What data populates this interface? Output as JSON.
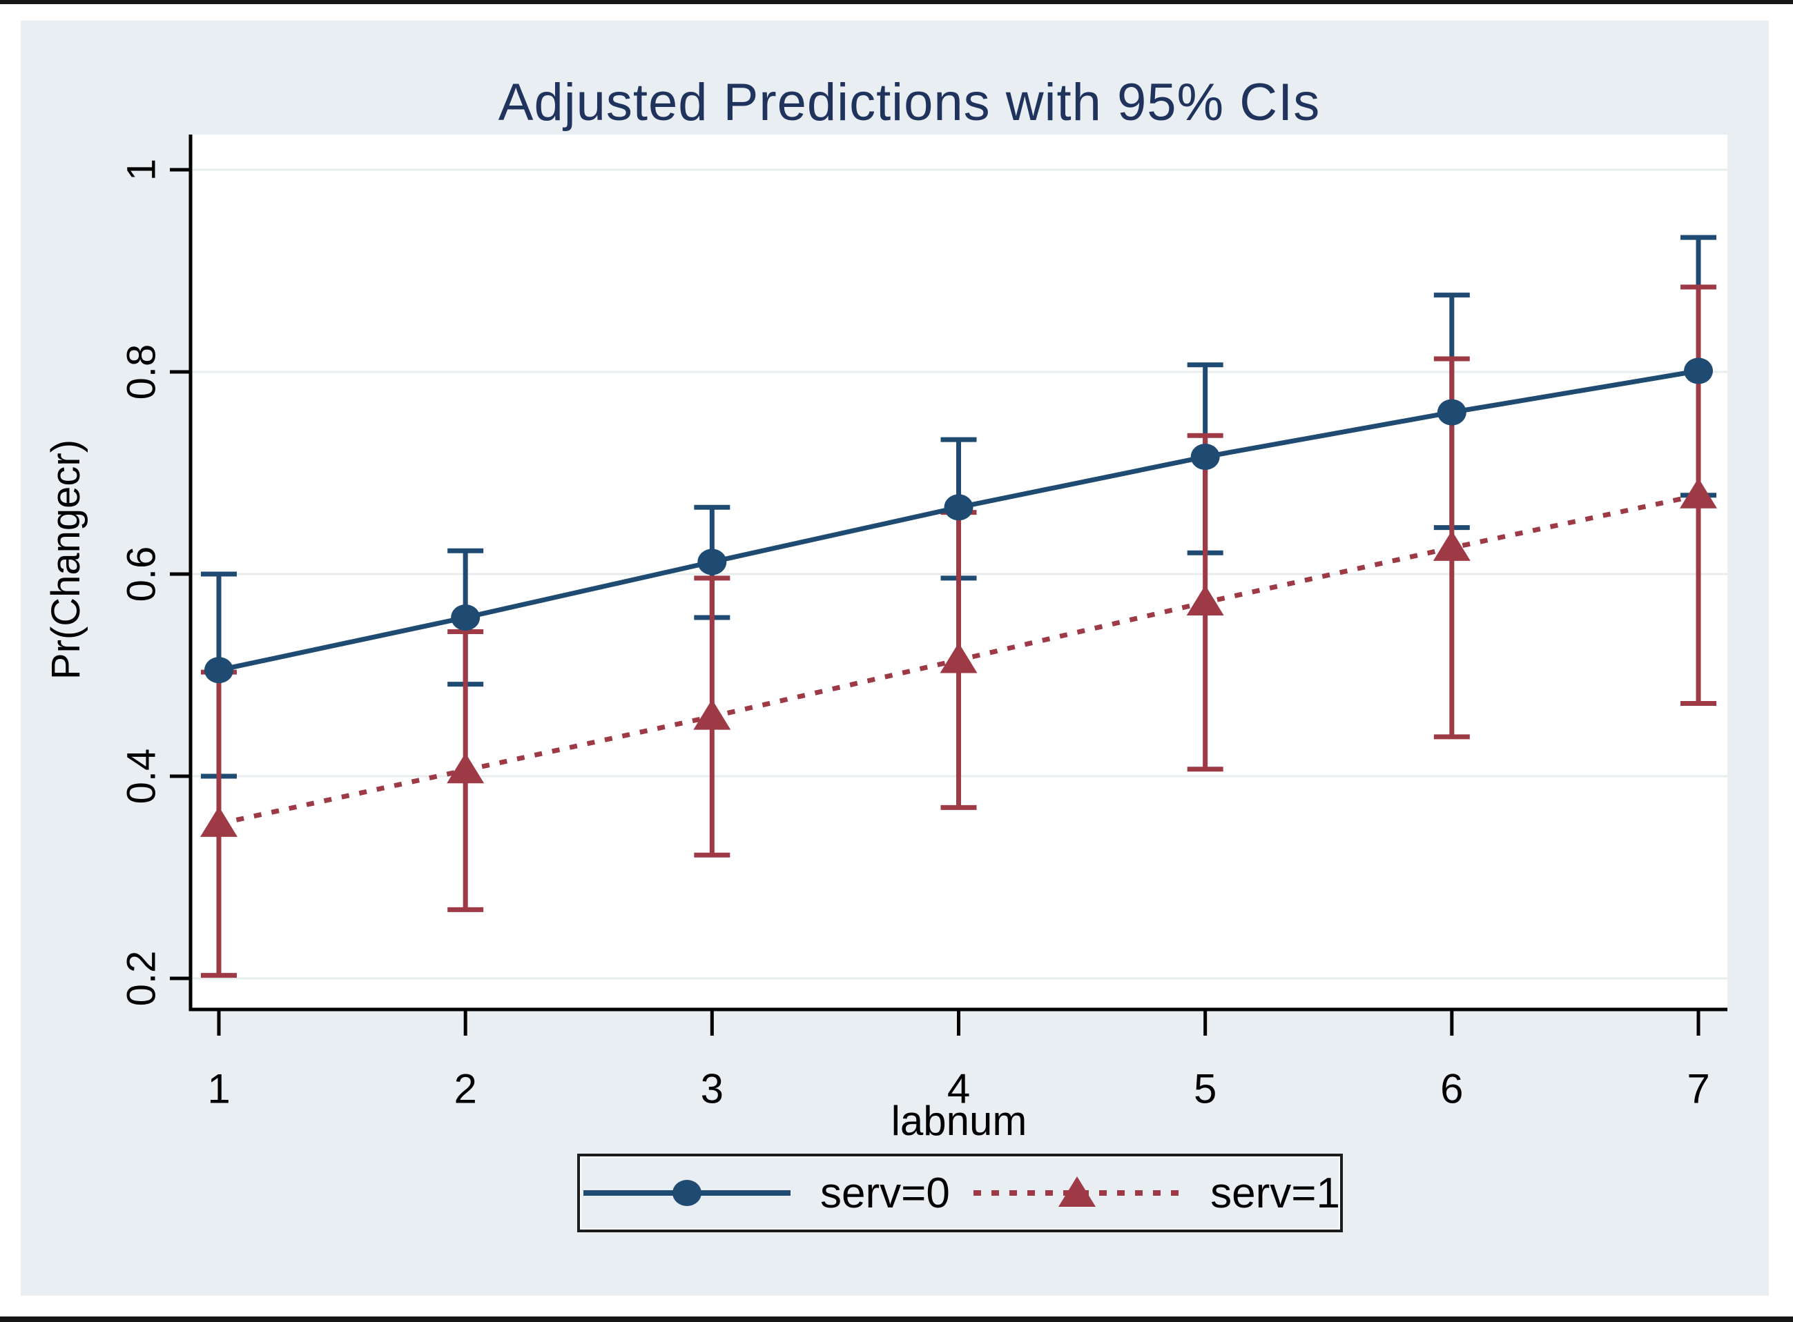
{
  "title": "Adjusted Predictions with 95% CIs",
  "colors": {
    "canvas_background": "#e9eef3",
    "plot_background": "#ffffff",
    "gridline": "#e7ecee",
    "axis": "#000000",
    "title_text": "#20335c",
    "serv0": "#1f4a72",
    "serv1": "#9e3a46"
  },
  "chart_data": {
    "type": "line",
    "title": "Adjusted Predictions with 95% CIs",
    "xlabel": "labnum",
    "ylabel": "Pr(Changecr)",
    "x": [
      1,
      2,
      3,
      4,
      5,
      6,
      7
    ],
    "x_tick_labels": [
      "1",
      "2",
      "3",
      "4",
      "5",
      "6",
      "7"
    ],
    "y_tick_values": [
      0.2,
      0.4,
      0.6,
      0.8,
      1
    ],
    "y_tick_labels": [
      "0.2",
      "0.4",
      "0.6",
      "0.8",
      "1"
    ],
    "ylim": [
      0.165,
      1.034
    ],
    "grid": "horizontal gridlines on",
    "legend_position": "bottom",
    "error_bars": "95% confidence intervals",
    "series": [
      {
        "name": "serv=0",
        "color": "#1f4a72",
        "marker": "circle",
        "line_style": "solid",
        "values": [
          0.505,
          0.557,
          0.612,
          0.666,
          0.716,
          0.76,
          0.801
        ],
        "ci_low": [
          0.4,
          0.491,
          0.557,
          0.596,
          0.621,
          0.646,
          0.678
        ],
        "ci_high": [
          0.6,
          0.623,
          0.666,
          0.733,
          0.807,
          0.876,
          0.933
        ]
      },
      {
        "name": "serv=1",
        "color": "#9e3a46",
        "marker": "triangle",
        "line_style": "dotted",
        "values": [
          0.353,
          0.406,
          0.459,
          0.515,
          0.572,
          0.626,
          0.678
        ],
        "ci_low": [
          0.203,
          0.268,
          0.322,
          0.369,
          0.407,
          0.439,
          0.472
        ],
        "ci_high": [
          0.503,
          0.543,
          0.596,
          0.661,
          0.737,
          0.813,
          0.884
        ]
      }
    ]
  },
  "legend": {
    "serv0_label": "serv=0",
    "serv1_label": "serv=1"
  }
}
